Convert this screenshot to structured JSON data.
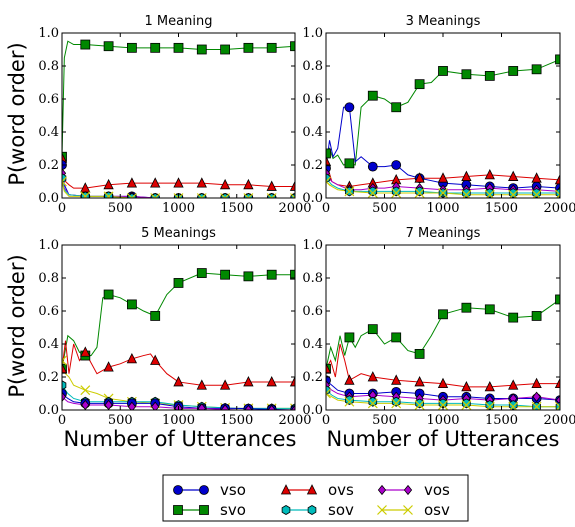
{
  "chart_data": {
    "type": "line",
    "ylabel": "P(word order)",
    "xlabel": "Number of Utterances",
    "xlim": [
      0,
      2000
    ],
    "ylim": [
      0,
      1.0
    ],
    "xticks": [
      0,
      500,
      1000,
      1500,
      2000
    ],
    "yticks": [
      0.0,
      0.2,
      0.4,
      0.6,
      0.8,
      1.0
    ],
    "ytick_labels": [
      "0.0",
      "0.2",
      "0.4",
      "0.6",
      "0.8",
      "1.0"
    ],
    "grid": false,
    "legend": {
      "position": "bottom-center",
      "entries": [
        {
          "label": "vso",
          "color": "#0000cc",
          "marker": "circle"
        },
        {
          "label": "ovs",
          "color": "#dd0000",
          "marker": "triangle"
        },
        {
          "label": "vos",
          "color": "#aa00cc",
          "marker": "diamond"
        },
        {
          "label": "svo",
          "color": "#008800",
          "marker": "square"
        },
        {
          "label": "sov",
          "color": "#00bbbb",
          "marker": "hexagon"
        },
        {
          "label": "osv",
          "color": "#cccc00",
          "marker": "x"
        }
      ]
    },
    "panels": [
      {
        "title": "1 Meaning",
        "series": [
          {
            "name": "svo",
            "x": [
              0,
              10,
              20,
              50,
              100,
              200,
              400,
              600,
              800,
              1000,
              1200,
              1400,
              1600,
              1800,
              2000
            ],
            "y": [
              0.25,
              0.55,
              0.85,
              0.95,
              0.93,
              0.93,
              0.92,
              0.91,
              0.91,
              0.91,
              0.9,
              0.9,
              0.91,
              0.91,
              0.92
            ]
          },
          {
            "name": "ovs",
            "x": [
              0,
              10,
              30,
              60,
              100,
              200,
              400,
              600,
              800,
              1000,
              1200,
              1400,
              1600,
              1800,
              2000
            ],
            "y": [
              0.24,
              0.14,
              0.1,
              0.08,
              0.06,
              0.06,
              0.08,
              0.09,
              0.09,
              0.09,
              0.09,
              0.08,
              0.08,
              0.07,
              0.07
            ]
          },
          {
            "name": "vso",
            "x": [
              0,
              20,
              60,
              200,
              400,
              600,
              800,
              1000,
              1200,
              1400,
              1600,
              1800,
              2000
            ],
            "y": [
              0.2,
              0.08,
              0.02,
              0.01,
              0.01,
              0.01,
              0.0,
              0.0,
              0.0,
              0.0,
              0.0,
              0.0,
              0.0
            ]
          },
          {
            "name": "vos",
            "x": [
              0,
              20,
              60,
              200,
              400,
              600,
              800,
              1000,
              1200,
              1400,
              1600,
              1800,
              2000
            ],
            "y": [
              0.15,
              0.06,
              0.02,
              0.01,
              0.01,
              0.01,
              0.0,
              0.0,
              0.0,
              0.0,
              0.0,
              0.0,
              0.0
            ]
          },
          {
            "name": "sov",
            "x": [
              0,
              20,
              60,
              200,
              400,
              600,
              800,
              1000,
              1200,
              1400,
              1600,
              1800,
              2000
            ],
            "y": [
              0.12,
              0.05,
              0.02,
              0.01,
              0.01,
              0.0,
              0.0,
              0.0,
              0.0,
              0.0,
              0.0,
              0.0,
              0.0
            ]
          },
          {
            "name": "osv",
            "x": [
              0,
              20,
              60,
              200,
              400,
              600,
              800,
              1000,
              1200,
              1400,
              1600,
              1800,
              2000
            ],
            "y": [
              0.1,
              0.04,
              0.01,
              0.01,
              0.01,
              0.0,
              0.0,
              0.0,
              0.0,
              0.0,
              0.0,
              0.0,
              0.0
            ]
          }
        ]
      },
      {
        "title": "3 Meanings",
        "series": [
          {
            "name": "svo",
            "x": [
              0,
              30,
              60,
              100,
              150,
              200,
              250,
              300,
              400,
              500,
              600,
              700,
              800,
              900,
              1000,
              1200,
              1400,
              1600,
              1800,
              2000
            ],
            "y": [
              0.27,
              0.3,
              0.24,
              0.26,
              0.2,
              0.21,
              0.2,
              0.55,
              0.62,
              0.6,
              0.55,
              0.58,
              0.69,
              0.7,
              0.77,
              0.75,
              0.74,
              0.77,
              0.78,
              0.84
            ]
          },
          {
            "name": "vso",
            "x": [
              0,
              30,
              60,
              100,
              150,
              200,
              250,
              300,
              400,
              500,
              600,
              700,
              800,
              1000,
              1200,
              1400,
              1600,
              1800,
              2000
            ],
            "y": [
              0.18,
              0.35,
              0.25,
              0.3,
              0.55,
              0.55,
              0.22,
              0.25,
              0.19,
              0.19,
              0.2,
              0.14,
              0.12,
              0.09,
              0.08,
              0.07,
              0.06,
              0.07,
              0.06
            ]
          },
          {
            "name": "ovs",
            "x": [
              0,
              50,
              100,
              200,
              300,
              400,
              500,
              600,
              800,
              1000,
              1200,
              1400,
              1600,
              1800,
              2000
            ],
            "y": [
              0.22,
              0.1,
              0.08,
              0.07,
              0.08,
              0.09,
              0.1,
              0.11,
              0.12,
              0.12,
              0.13,
              0.14,
              0.13,
              0.12,
              0.11
            ]
          },
          {
            "name": "vos",
            "x": [
              0,
              50,
              100,
              200,
              300,
              400,
              500,
              600,
              800,
              1000,
              1200,
              1400,
              1600,
              1800,
              2000
            ],
            "y": [
              0.15,
              0.1,
              0.08,
              0.05,
              0.05,
              0.06,
              0.06,
              0.07,
              0.06,
              0.05,
              0.05,
              0.06,
              0.05,
              0.05,
              0.04
            ]
          },
          {
            "name": "sov",
            "x": [
              0,
              50,
              100,
              200,
              400,
              600,
              800,
              1000,
              1200,
              1400,
              1600,
              1800,
              2000
            ],
            "y": [
              0.12,
              0.08,
              0.06,
              0.04,
              0.04,
              0.04,
              0.04,
              0.03,
              0.03,
              0.03,
              0.03,
              0.03,
              0.03
            ]
          },
          {
            "name": "osv",
            "x": [
              0,
              50,
              100,
              200,
              400,
              600,
              800,
              1000,
              1200,
              1400,
              1600,
              1800,
              2000
            ],
            "y": [
              0.1,
              0.07,
              0.05,
              0.04,
              0.03,
              0.03,
              0.03,
              0.03,
              0.02,
              0.02,
              0.02,
              0.02,
              0.02
            ]
          }
        ]
      },
      {
        "title": "5 Meanings",
        "series": [
          {
            "name": "svo",
            "x": [
              0,
              50,
              100,
              150,
              200,
              250,
              300,
              350,
              400,
              500,
              600,
              700,
              800,
              900,
              1000,
              1200,
              1400,
              1600,
              1800,
              2000
            ],
            "y": [
              0.25,
              0.45,
              0.42,
              0.35,
              0.33,
              0.33,
              0.38,
              0.68,
              0.7,
              0.68,
              0.64,
              0.6,
              0.57,
              0.7,
              0.77,
              0.83,
              0.82,
              0.81,
              0.82,
              0.82
            ]
          },
          {
            "name": "ovs",
            "x": [
              0,
              30,
              60,
              100,
              150,
              200,
              300,
              400,
              500,
              600,
              700,
              760,
              800,
              900,
              1000,
              1200,
              1400,
              1600,
              1800,
              2000
            ],
            "y": [
              0.25,
              0.42,
              0.22,
              0.4,
              0.3,
              0.35,
              0.22,
              0.26,
              0.28,
              0.31,
              0.33,
              0.34,
              0.3,
              0.22,
              0.17,
              0.15,
              0.15,
              0.17,
              0.17,
              0.17
            ]
          },
          {
            "name": "osv",
            "x": [
              0,
              30,
              60,
              100,
              200,
              300,
              400,
              500,
              600,
              800,
              1000,
              1200,
              1500,
              2000
            ],
            "y": [
              0.3,
              0.22,
              0.2,
              0.15,
              0.12,
              0.1,
              0.07,
              0.06,
              0.05,
              0.04,
              0.03,
              0.02,
              0.01,
              0.01
            ]
          },
          {
            "name": "sov",
            "x": [
              0,
              50,
              100,
              200,
              400,
              600,
              800,
              1000,
              1200,
              1500,
              2000
            ],
            "y": [
              0.15,
              0.1,
              0.07,
              0.05,
              0.05,
              0.05,
              0.05,
              0.03,
              0.02,
              0.01,
              0.01
            ]
          },
          {
            "name": "vso",
            "x": [
              0,
              50,
              100,
              200,
              400,
              600,
              800,
              1000,
              1200,
              1500,
              2000
            ],
            "y": [
              0.1,
              0.07,
              0.05,
              0.04,
              0.04,
              0.04,
              0.04,
              0.02,
              0.01,
              0.01,
              0.0
            ]
          },
          {
            "name": "vos",
            "x": [
              0,
              50,
              100,
              200,
              400,
              600,
              800,
              1000,
              1200,
              1500,
              2000
            ],
            "y": [
              0.08,
              0.05,
              0.04,
              0.03,
              0.03,
              0.02,
              0.02,
              0.01,
              0.01,
              0.0,
              0.0
            ]
          }
        ]
      },
      {
        "title": "7 Meanings",
        "series": [
          {
            "name": "svo",
            "x": [
              0,
              40,
              80,
              120,
              160,
              200,
              250,
              300,
              400,
              500,
              600,
              700,
              800,
              900,
              1000,
              1200,
              1400,
              1600,
              1800,
              1900,
              2000
            ],
            "y": [
              0.25,
              0.38,
              0.3,
              0.45,
              0.33,
              0.44,
              0.38,
              0.45,
              0.49,
              0.4,
              0.44,
              0.36,
              0.34,
              0.45,
              0.58,
              0.62,
              0.61,
              0.56,
              0.57,
              0.62,
              0.67
            ]
          },
          {
            "name": "ovs",
            "x": [
              0,
              40,
              80,
              120,
              160,
              200,
              300,
              400,
              500,
              600,
              800,
              1000,
              1200,
              1400,
              1600,
              1800,
              2000
            ],
            "y": [
              0.25,
              0.3,
              0.2,
              0.4,
              0.3,
              0.18,
              0.22,
              0.2,
              0.19,
              0.18,
              0.17,
              0.16,
              0.14,
              0.14,
              0.15,
              0.16,
              0.16
            ]
          },
          {
            "name": "vso",
            "x": [
              0,
              50,
              100,
              200,
              400,
              600,
              800,
              1000,
              1200,
              1400,
              1600,
              1800,
              2000
            ],
            "y": [
              0.18,
              0.15,
              0.12,
              0.1,
              0.1,
              0.11,
              0.1,
              0.08,
              0.08,
              0.07,
              0.07,
              0.07,
              0.06
            ]
          },
          {
            "name": "vos",
            "x": [
              0,
              50,
              100,
              200,
              400,
              600,
              800,
              1000,
              1200,
              1400,
              1600,
              1800,
              2000
            ],
            "y": [
              0.15,
              0.12,
              0.1,
              0.08,
              0.09,
              0.08,
              0.07,
              0.06,
              0.07,
              0.06,
              0.07,
              0.08,
              0.06
            ]
          },
          {
            "name": "sov",
            "x": [
              0,
              50,
              100,
              200,
              400,
              600,
              800,
              1000,
              1200,
              1400,
              1600,
              1800,
              2000
            ],
            "y": [
              0.12,
              0.09,
              0.07,
              0.06,
              0.05,
              0.05,
              0.04,
              0.04,
              0.04,
              0.03,
              0.03,
              0.02,
              0.02
            ]
          },
          {
            "name": "osv",
            "x": [
              0,
              50,
              100,
              200,
              400,
              600,
              800,
              1000,
              1200,
              1400,
              1600,
              1800,
              2000
            ],
            "y": [
              0.1,
              0.08,
              0.06,
              0.05,
              0.04,
              0.04,
              0.03,
              0.03,
              0.03,
              0.02,
              0.02,
              0.02,
              0.02
            ]
          }
        ]
      }
    ]
  }
}
